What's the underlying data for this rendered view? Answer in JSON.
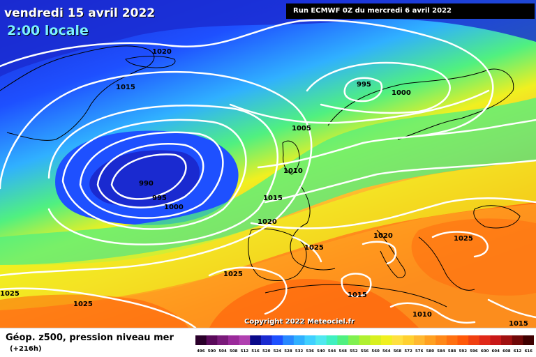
{
  "header": {
    "date": "vendredi 15 avril 2022",
    "time": "2:00 locale",
    "run": "Run ECMWF 0Z du mercredi 6 avril 2022"
  },
  "footer": {
    "copyright": "Copyright 2022 Meteociel.fr",
    "legend_title": "Géop. z500, pression niveau mer",
    "legend_sub": "(+216h)"
  },
  "scale": {
    "labels": [
      "496",
      "500",
      "504",
      "508",
      "512",
      "516",
      "520",
      "524",
      "528",
      "532",
      "536",
      "540",
      "544",
      "548",
      "552",
      "556",
      "560",
      "564",
      "568",
      "572",
      "576",
      "580",
      "584",
      "588",
      "592",
      "596",
      "600",
      "604",
      "608",
      "612",
      "616"
    ],
    "colors": [
      "#2a002a",
      "#5a0a5a",
      "#7a1a7a",
      "#9a2a9a",
      "#b040b0",
      "#0a0a8a",
      "#1a2ad0",
      "#1e50ff",
      "#2888ff",
      "#30b0ff",
      "#40d0ff",
      "#50e8f0",
      "#40f0c0",
      "#50f080",
      "#80f050",
      "#b0f030",
      "#d8f020",
      "#f0f020",
      "#ffe040",
      "#ffd030",
      "#ffb830",
      "#ffa020",
      "#ff8818",
      "#ff7010",
      "#ff5808",
      "#f04010",
      "#e02818",
      "#c81818",
      "#a01010",
      "#700808",
      "#400000"
    ]
  },
  "pressure_labels": [
    "1020",
    "1015",
    "995",
    "1000",
    "1005",
    "1010",
    "990",
    "995",
    "1000",
    "1015",
    "1020",
    "1025",
    "1020",
    "1025",
    "1025",
    "1025",
    "1015",
    "1025",
    "1010",
    "1015"
  ],
  "map": {
    "colors": {
      "blue_dark": "#1e50ff",
      "blue": "#2888ff",
      "cyan": "#40d0ff",
      "green": "#50f080",
      "yellow": "#f0f020",
      "orange": "#ffa020",
      "red": "#ff5808"
    }
  }
}
